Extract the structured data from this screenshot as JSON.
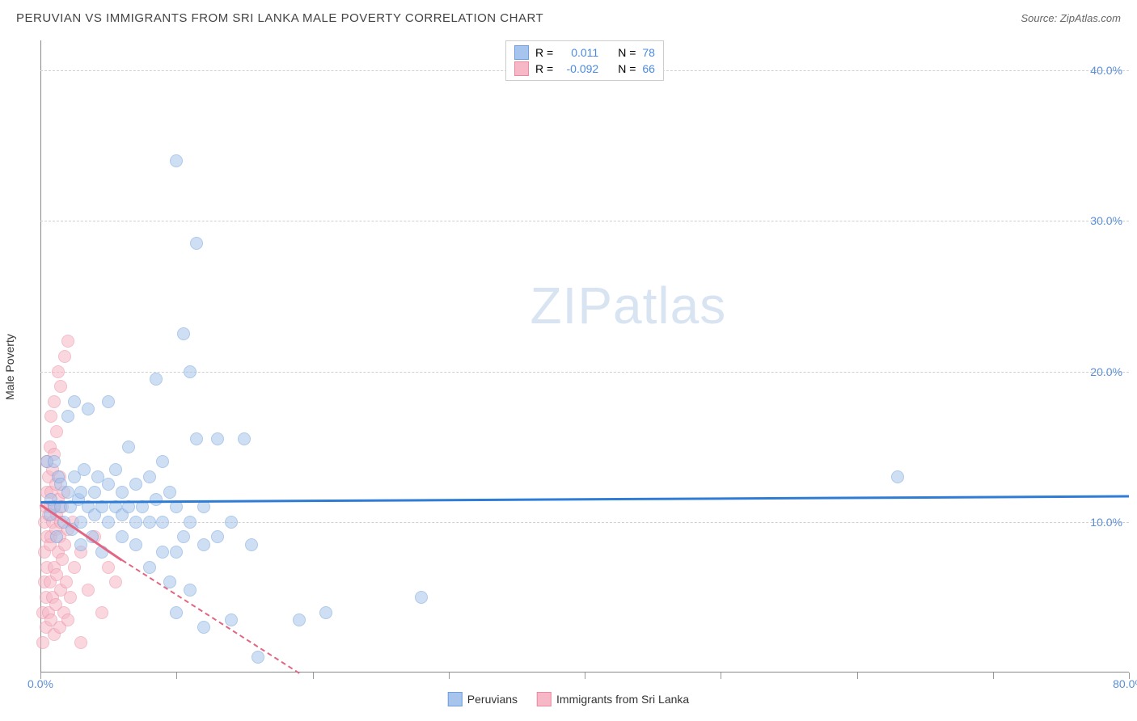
{
  "header": {
    "title": "PERUVIAN VS IMMIGRANTS FROM SRI LANKA MALE POVERTY CORRELATION CHART",
    "source_prefix": "Source: ",
    "source_name": "ZipAtlas.com"
  },
  "y_axis_label": "Male Poverty",
  "watermark": {
    "zip": "ZIP",
    "atlas": "atlas",
    "color": "#d8e4f2"
  },
  "chart": {
    "type": "scatter",
    "xlim": [
      0,
      80
    ],
    "ylim": [
      0,
      42
    ],
    "x_ticks": [
      0,
      10,
      20,
      30,
      40,
      50,
      60,
      70,
      80
    ],
    "x_tick_labels": {
      "0": "0.0%",
      "80": "80.0%"
    },
    "y_ticks": [
      10,
      20,
      30,
      40
    ],
    "y_tick_labels": {
      "10": "10.0%",
      "20": "20.0%",
      "30": "30.0%",
      "40": "40.0%"
    },
    "grid_color": "#d0d0d0",
    "background_color": "#ffffff",
    "tick_label_color": "#5a8fd8",
    "marker_radius": 8,
    "marker_opacity": 0.55,
    "series": {
      "peruvians": {
        "label": "Peruvians",
        "fill": "#a7c5ec",
        "stroke": "#6f9edb",
        "trend_color": "#2e7cd6",
        "r_value": "0.011",
        "n_value": "78",
        "trend": {
          "x1": 0,
          "y1": 11.4,
          "x2": 80,
          "y2": 11.8
        },
        "points": [
          [
            0.5,
            14
          ],
          [
            0.7,
            10.5
          ],
          [
            0.8,
            11.5
          ],
          [
            1,
            11
          ],
          [
            1,
            14
          ],
          [
            1.2,
            9
          ],
          [
            1.3,
            13
          ],
          [
            1.5,
            11
          ],
          [
            1.5,
            12.5
          ],
          [
            1.7,
            10
          ],
          [
            2,
            12
          ],
          [
            2,
            17
          ],
          [
            2.2,
            11
          ],
          [
            2.3,
            9.5
          ],
          [
            2.5,
            13
          ],
          [
            2.5,
            18
          ],
          [
            2.8,
            11.5
          ],
          [
            3,
            8.5
          ],
          [
            3,
            10
          ],
          [
            3,
            12
          ],
          [
            3.2,
            13.5
          ],
          [
            3.5,
            11
          ],
          [
            3.5,
            17.5
          ],
          [
            3.8,
            9
          ],
          [
            4,
            10.5
          ],
          [
            4,
            12
          ],
          [
            4.2,
            13
          ],
          [
            4.5,
            8
          ],
          [
            4.5,
            11
          ],
          [
            5,
            10
          ],
          [
            5,
            12.5
          ],
          [
            5,
            18
          ],
          [
            5.5,
            11
          ],
          [
            5.5,
            13.5
          ],
          [
            6,
            9
          ],
          [
            6,
            10.5
          ],
          [
            6,
            12
          ],
          [
            6.5,
            11
          ],
          [
            6.5,
            15
          ],
          [
            7,
            8.5
          ],
          [
            7,
            10
          ],
          [
            7,
            12.5
          ],
          [
            7.5,
            11
          ],
          [
            8,
            7
          ],
          [
            8,
            10
          ],
          [
            8,
            13
          ],
          [
            8.5,
            11.5
          ],
          [
            8.5,
            19.5
          ],
          [
            9,
            8
          ],
          [
            9,
            10
          ],
          [
            9,
            14
          ],
          [
            9.5,
            6
          ],
          [
            9.5,
            12
          ],
          [
            10,
            4
          ],
          [
            10,
            8
          ],
          [
            10,
            11
          ],
          [
            10,
            34
          ],
          [
            10.5,
            9
          ],
          [
            10.5,
            22.5
          ],
          [
            11,
            5.5
          ],
          [
            11,
            10
          ],
          [
            11,
            20
          ],
          [
            11.5,
            28.5
          ],
          [
            11.5,
            15.5
          ],
          [
            12,
            3
          ],
          [
            12,
            8.5
          ],
          [
            12,
            11
          ],
          [
            13,
            9
          ],
          [
            13,
            15.5
          ],
          [
            14,
            3.5
          ],
          [
            14,
            10
          ],
          [
            15,
            15.5
          ],
          [
            15.5,
            8.5
          ],
          [
            16,
            1
          ],
          [
            19,
            3.5
          ],
          [
            21,
            4
          ],
          [
            28,
            5
          ],
          [
            63,
            13
          ]
        ]
      },
      "srilanka": {
        "label": "Immigrants from Sri Lanka",
        "fill": "#f6b8c6",
        "stroke": "#ea8aa1",
        "trend_color": "#e26683",
        "r_value": "-0.092",
        "n_value": "66",
        "trend_solid": {
          "x1": 0,
          "y1": 11.2,
          "x2": 6,
          "y2": 7.5
        },
        "trend_dashed": {
          "x1": 6,
          "y1": 7.5,
          "x2": 19,
          "y2": 0
        },
        "points": [
          [
            0.2,
            2
          ],
          [
            0.2,
            4
          ],
          [
            0.3,
            6
          ],
          [
            0.3,
            8
          ],
          [
            0.3,
            10
          ],
          [
            0.4,
            3
          ],
          [
            0.4,
            5
          ],
          [
            0.4,
            11
          ],
          [
            0.5,
            7
          ],
          [
            0.5,
            9
          ],
          [
            0.5,
            12
          ],
          [
            0.5,
            14
          ],
          [
            0.6,
            4
          ],
          [
            0.6,
            10.5
          ],
          [
            0.6,
            13
          ],
          [
            0.7,
            6
          ],
          [
            0.7,
            8.5
          ],
          [
            0.7,
            11
          ],
          [
            0.7,
            15
          ],
          [
            0.8,
            3.5
          ],
          [
            0.8,
            9
          ],
          [
            0.8,
            12
          ],
          [
            0.8,
            17
          ],
          [
            0.9,
            5
          ],
          [
            0.9,
            10
          ],
          [
            0.9,
            13.5
          ],
          [
            1,
            2.5
          ],
          [
            1,
            7
          ],
          [
            1,
            11
          ],
          [
            1,
            14.5
          ],
          [
            1,
            18
          ],
          [
            1.1,
            4.5
          ],
          [
            1.1,
            9.5
          ],
          [
            1.1,
            12.5
          ],
          [
            1.2,
            6.5
          ],
          [
            1.2,
            10.5
          ],
          [
            1.2,
            16
          ],
          [
            1.3,
            8
          ],
          [
            1.3,
            11.5
          ],
          [
            1.3,
            20
          ],
          [
            1.4,
            3
          ],
          [
            1.4,
            9
          ],
          [
            1.4,
            13
          ],
          [
            1.5,
            5.5
          ],
          [
            1.5,
            10
          ],
          [
            1.5,
            19
          ],
          [
            1.6,
            7.5
          ],
          [
            1.6,
            11
          ],
          [
            1.7,
            4
          ],
          [
            1.7,
            12
          ],
          [
            1.8,
            8.5
          ],
          [
            1.8,
            21
          ],
          [
            1.9,
            6
          ],
          [
            2,
            3.5
          ],
          [
            2,
            9.5
          ],
          [
            2,
            22
          ],
          [
            2.2,
            5
          ],
          [
            2.4,
            10
          ],
          [
            2.5,
            7
          ],
          [
            3,
            2
          ],
          [
            3,
            8
          ],
          [
            3.5,
            5.5
          ],
          [
            4,
            9
          ],
          [
            4.5,
            4
          ],
          [
            5,
            7
          ],
          [
            5.5,
            6
          ]
        ]
      }
    }
  },
  "legend_top": {
    "r_label": "R =",
    "n_label": "N ="
  },
  "colors": {
    "value_text": "#4a8be0",
    "label_text": "#333333"
  }
}
